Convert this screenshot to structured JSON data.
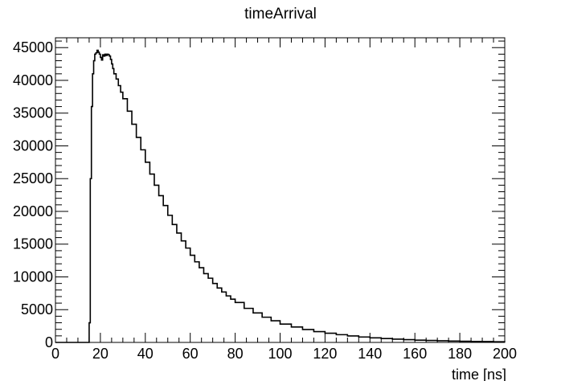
{
  "chart_data": {
    "type": "line",
    "title": "timeArrival",
    "xlabel": "time [ns]",
    "ylabel": "",
    "xlim": [
      0,
      200
    ],
    "ylim": [
      0,
      46500
    ],
    "grid": false,
    "legend": false,
    "x_ticks": [
      0,
      20,
      40,
      60,
      80,
      100,
      120,
      140,
      160,
      180,
      200
    ],
    "y_ticks": [
      0,
      5000,
      10000,
      15000,
      20000,
      25000,
      30000,
      35000,
      40000,
      45000
    ],
    "series": [
      {
        "style": "step-histogram",
        "color": "#000000",
        "x": [
          0,
          14,
          14.8,
          15,
          15.5,
          16,
          16.5,
          17,
          17.5,
          18,
          18.5,
          19,
          19.5,
          20,
          20.5,
          21,
          21.5,
          22,
          22.5,
          23,
          23.5,
          24,
          24.5,
          25,
          25.5,
          26,
          27,
          28,
          29,
          30,
          32,
          34,
          36,
          38,
          40,
          42,
          44,
          46,
          48,
          50,
          52,
          54,
          56,
          58,
          60,
          62,
          64,
          66,
          68,
          70,
          72,
          74,
          76,
          78,
          80,
          84,
          88,
          92,
          96,
          100,
          105,
          110,
          115,
          120,
          125,
          130,
          135,
          140,
          145,
          150,
          155,
          160,
          165,
          170,
          175,
          180,
          185,
          190,
          195,
          200
        ],
        "y": [
          0,
          0,
          0,
          3000,
          25000,
          36000,
          41000,
          43000,
          44000,
          44200,
          44600,
          44300,
          44000,
          43500,
          43100,
          43900,
          43700,
          44000,
          43800,
          44000,
          43900,
          43700,
          43200,
          42500,
          41800,
          41000,
          40200,
          39200,
          38200,
          37200,
          35300,
          33300,
          31300,
          29400,
          27500,
          25700,
          24000,
          22400,
          20900,
          19400,
          18000,
          16700,
          15500,
          14400,
          13300,
          12300,
          11400,
          10500,
          9800,
          9000,
          8300,
          7700,
          7100,
          6600,
          6100,
          5200,
          4500,
          3850,
          3300,
          2800,
          2350,
          1970,
          1650,
          1400,
          1180,
          990,
          830,
          700,
          590,
          500,
          420,
          350,
          300,
          250,
          210,
          180,
          150,
          125,
          105,
          90
        ]
      }
    ]
  }
}
